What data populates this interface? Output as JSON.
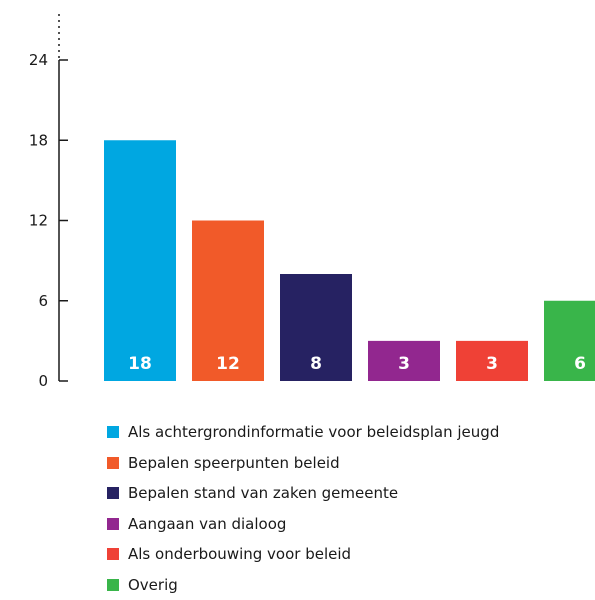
{
  "chart_data": {
    "type": "bar",
    "categories": [
      "Als achtergrondinformatie voor beleidsplan jeugd",
      "Bepalen speerpunten beleid",
      "Bepalen stand van zaken gemeente",
      "Aangaan van dialoog",
      "Als onderbouwing voor beleid",
      "Overig"
    ],
    "values": [
      18,
      12,
      8,
      3,
      3,
      6
    ],
    "data_labels": [
      "18",
      "12",
      "8",
      "3",
      "3",
      "6"
    ],
    "colors": [
      "#00a7e1",
      "#f15a29",
      "#262262",
      "#92278f",
      "#ef4136",
      "#39b54a"
    ],
    "y_ticks": [
      0,
      6,
      12,
      18,
      24
    ],
    "ylim": [
      0,
      24
    ],
    "axis_break": true,
    "grid": false,
    "legend_position": "bottom"
  }
}
